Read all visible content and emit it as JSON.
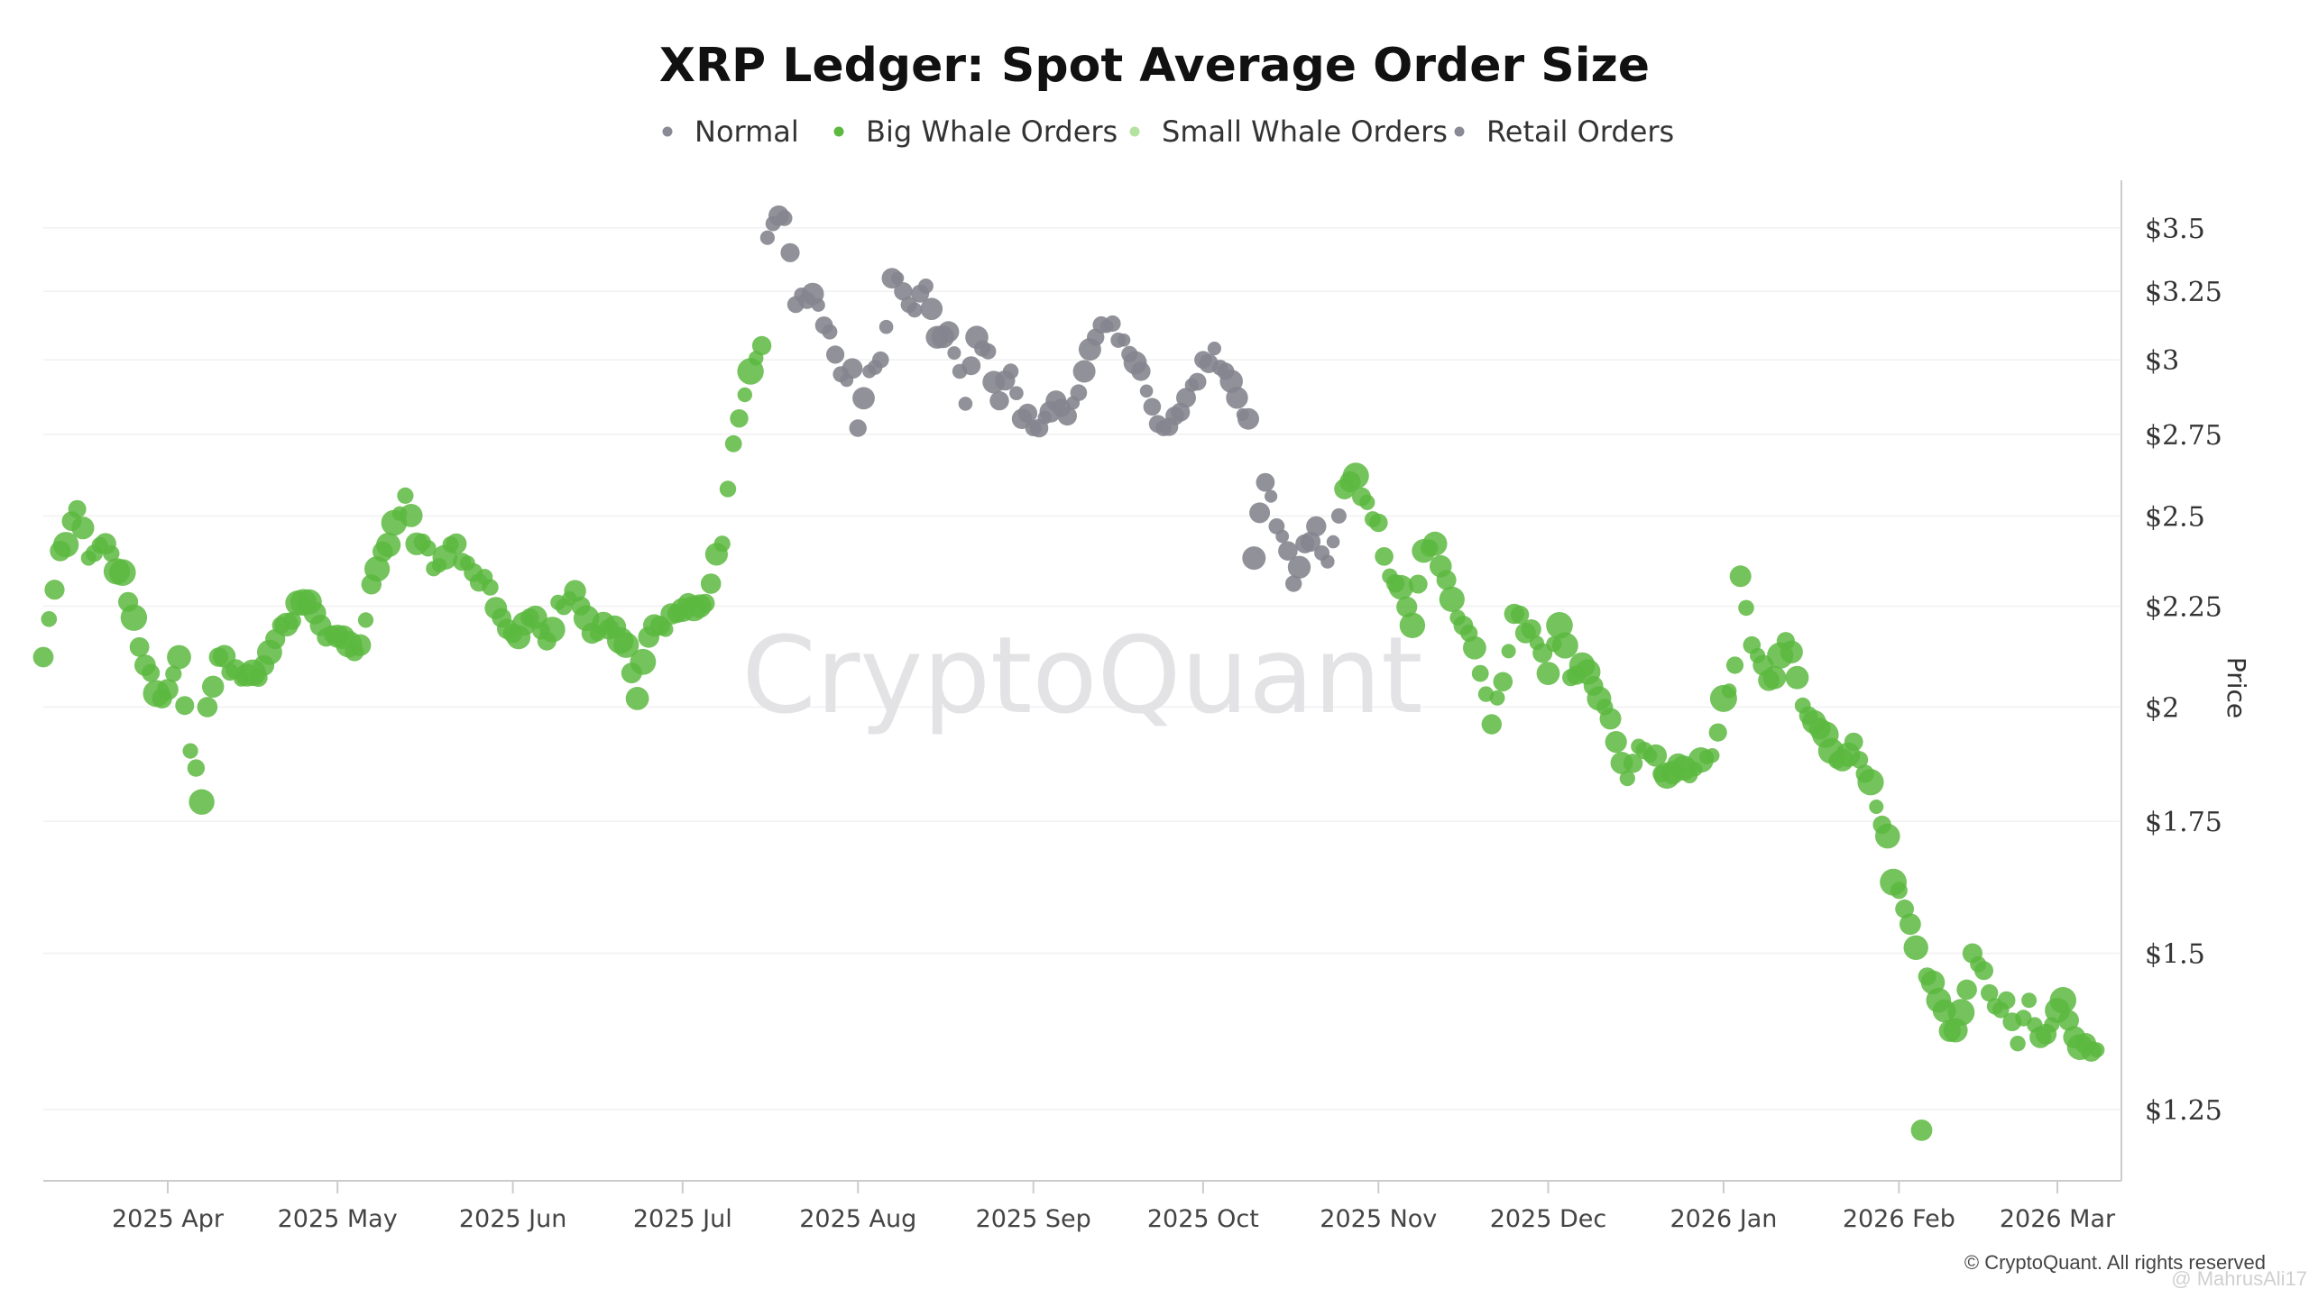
{
  "chart_data": {
    "type": "scatter",
    "title": "XRP Ledger: Spot Average Order Size",
    "ylabel": "Price",
    "xlabel": "",
    "y_scale": "log",
    "ylim": [
      1.15,
      3.7
    ],
    "yticks": [
      {
        "value": 1.25,
        "label": "$1.25"
      },
      {
        "value": 1.5,
        "label": "$1.5"
      },
      {
        "value": 1.75,
        "label": "$1.75"
      },
      {
        "value": 2,
        "label": "$2"
      },
      {
        "value": 2.25,
        "label": "$2.25"
      },
      {
        "value": 2.5,
        "label": "$2.5"
      },
      {
        "value": 2.75,
        "label": "$2.75"
      },
      {
        "value": 3,
        "label": "$3"
      },
      {
        "value": 3.25,
        "label": "$3.25"
      },
      {
        "value": 3.5,
        "label": "$3.5"
      }
    ],
    "x_start": "2025-03-10",
    "x_end": "2026-03-12",
    "xticks": [
      {
        "date": "2025-04-01",
        "label": "2025 Apr"
      },
      {
        "date": "2025-05-01",
        "label": "2025 May"
      },
      {
        "date": "2025-06-01",
        "label": "2025 Jun"
      },
      {
        "date": "2025-07-01",
        "label": "2025 Jul"
      },
      {
        "date": "2025-08-01",
        "label": "2025 Aug"
      },
      {
        "date": "2025-09-01",
        "label": "2025 Sep"
      },
      {
        "date": "2025-10-01",
        "label": "2025 Oct"
      },
      {
        "date": "2025-11-01",
        "label": "2025 Nov"
      },
      {
        "date": "2025-12-01",
        "label": "2025 Dec"
      },
      {
        "date": "2026-01-01",
        "label": "2026 Jan"
      },
      {
        "date": "2026-02-01",
        "label": "2026 Feb"
      },
      {
        "date": "2026-03-01",
        "label": "2026 Mar"
      }
    ],
    "legend_position": "top-center",
    "legend": [
      {
        "key": "normal",
        "label": "Normal",
        "color": "#8a8a96"
      },
      {
        "key": "big",
        "label": "Big Whale Orders",
        "color": "#5cb83f"
      },
      {
        "key": "small",
        "label": "Small Whale Orders",
        "color": "#b5e29e"
      },
      {
        "key": "retail",
        "label": "Retail Orders",
        "color": "#8a8a96"
      }
    ],
    "series_colors": {
      "big": "#5cb83f",
      "retail": "#85858f"
    },
    "anchors": [
      [
        "2025-03-10",
        2.12,
        "big"
      ],
      [
        "2025-03-13",
        2.4,
        "big"
      ],
      [
        "2025-03-16",
        2.52,
        "big"
      ],
      [
        "2025-03-18",
        2.38,
        "big"
      ],
      [
        "2025-03-21",
        2.42,
        "big"
      ],
      [
        "2025-03-24",
        2.34,
        "big"
      ],
      [
        "2025-03-26",
        2.22,
        "big"
      ],
      [
        "2025-03-28",
        2.1,
        "big"
      ],
      [
        "2025-03-31",
        2.02,
        "big"
      ],
      [
        "2025-04-03",
        2.12,
        "big"
      ],
      [
        "2025-04-05",
        1.9,
        "big"
      ],
      [
        "2025-04-07",
        1.79,
        "big"
      ],
      [
        "2025-04-08",
        2.0,
        "big"
      ],
      [
        "2025-04-10",
        2.12,
        "big"
      ],
      [
        "2025-04-13",
        2.09,
        "big"
      ],
      [
        "2025-04-17",
        2.07,
        "big"
      ],
      [
        "2025-04-21",
        2.2,
        "big"
      ],
      [
        "2025-04-25",
        2.26,
        "big"
      ],
      [
        "2025-04-28",
        2.2,
        "big"
      ],
      [
        "2025-05-02",
        2.17,
        "big"
      ],
      [
        "2025-05-05",
        2.15,
        "big"
      ],
      [
        "2025-05-08",
        2.35,
        "big"
      ],
      [
        "2025-05-11",
        2.48,
        "big"
      ],
      [
        "2025-05-13",
        2.56,
        "big"
      ],
      [
        "2025-05-15",
        2.42,
        "big"
      ],
      [
        "2025-05-19",
        2.36,
        "big"
      ],
      [
        "2025-05-22",
        2.42,
        "big"
      ],
      [
        "2025-05-25",
        2.34,
        "big"
      ],
      [
        "2025-05-28",
        2.3,
        "big"
      ],
      [
        "2025-06-01",
        2.18,
        "big"
      ],
      [
        "2025-06-04",
        2.22,
        "big"
      ],
      [
        "2025-06-07",
        2.16,
        "big"
      ],
      [
        "2025-06-09",
        2.26,
        "big"
      ],
      [
        "2025-06-12",
        2.29,
        "big"
      ],
      [
        "2025-06-15",
        2.18,
        "big"
      ],
      [
        "2025-06-18",
        2.19,
        "big"
      ],
      [
        "2025-06-21",
        2.15,
        "big"
      ],
      [
        "2025-06-23",
        2.02,
        "big"
      ],
      [
        "2025-06-25",
        2.17,
        "big"
      ],
      [
        "2025-06-28",
        2.19,
        "big"
      ],
      [
        "2025-07-01",
        2.24,
        "big"
      ],
      [
        "2025-07-04",
        2.25,
        "big"
      ],
      [
        "2025-07-06",
        2.31,
        "big"
      ],
      [
        "2025-07-08",
        2.42,
        "big"
      ],
      [
        "2025-07-10",
        2.72,
        "big"
      ],
      [
        "2025-07-12",
        2.88,
        "big"
      ],
      [
        "2025-07-13",
        2.96,
        "big"
      ],
      [
        "2025-07-15",
        3.05,
        "big"
      ],
      [
        "2025-07-16",
        3.46,
        "retail"
      ],
      [
        "2025-07-18",
        3.55,
        "retail"
      ],
      [
        "2025-07-19",
        3.54,
        "retail"
      ],
      [
        "2025-07-21",
        3.2,
        "retail"
      ],
      [
        "2025-07-24",
        3.24,
        "retail"
      ],
      [
        "2025-07-27",
        3.1,
        "retail"
      ],
      [
        "2025-07-29",
        2.95,
        "retail"
      ],
      [
        "2025-07-31",
        2.97,
        "retail"
      ],
      [
        "2025-08-01",
        2.77,
        "retail"
      ],
      [
        "2025-08-03",
        2.96,
        "retail"
      ],
      [
        "2025-08-05",
        3.0,
        "retail"
      ],
      [
        "2025-08-07",
        3.3,
        "retail"
      ],
      [
        "2025-08-09",
        3.25,
        "retail"
      ],
      [
        "2025-08-11",
        3.18,
        "retail"
      ],
      [
        "2025-08-13",
        3.27,
        "retail"
      ],
      [
        "2025-08-15",
        3.08,
        "retail"
      ],
      [
        "2025-08-17",
        3.1,
        "retail"
      ],
      [
        "2025-08-19",
        2.96,
        "retail"
      ],
      [
        "2025-08-20",
        2.85,
        "retail"
      ],
      [
        "2025-08-22",
        3.08,
        "retail"
      ],
      [
        "2025-08-24",
        3.03,
        "retail"
      ],
      [
        "2025-08-26",
        2.86,
        "retail"
      ],
      [
        "2025-08-28",
        2.96,
        "retail"
      ],
      [
        "2025-08-30",
        2.8,
        "retail"
      ],
      [
        "2025-09-02",
        2.77,
        "retail"
      ],
      [
        "2025-09-05",
        2.86,
        "retail"
      ],
      [
        "2025-09-07",
        2.81,
        "retail"
      ],
      [
        "2025-09-10",
        2.96,
        "retail"
      ],
      [
        "2025-09-12",
        3.08,
        "retail"
      ],
      [
        "2025-09-14",
        3.12,
        "retail"
      ],
      [
        "2025-09-17",
        3.07,
        "retail"
      ],
      [
        "2025-09-19",
        2.99,
        "retail"
      ],
      [
        "2025-09-22",
        2.84,
        "retail"
      ],
      [
        "2025-09-24",
        2.77,
        "retail"
      ],
      [
        "2025-09-26",
        2.81,
        "retail"
      ],
      [
        "2025-09-28",
        2.87,
        "retail"
      ],
      [
        "2025-10-01",
        3.0,
        "retail"
      ],
      [
        "2025-10-03",
        3.04,
        "retail"
      ],
      [
        "2025-10-05",
        2.96,
        "retail"
      ],
      [
        "2025-10-07",
        2.87,
        "retail"
      ],
      [
        "2025-10-09",
        2.8,
        "retail"
      ],
      [
        "2025-10-10",
        2.38,
        "retail"
      ],
      [
        "2025-10-12",
        2.6,
        "retail"
      ],
      [
        "2025-10-14",
        2.47,
        "retail"
      ],
      [
        "2025-10-16",
        2.4,
        "retail"
      ],
      [
        "2025-10-17",
        2.31,
        "retail"
      ],
      [
        "2025-10-19",
        2.42,
        "retail"
      ],
      [
        "2025-10-21",
        2.47,
        "retail"
      ],
      [
        "2025-10-23",
        2.37,
        "retail"
      ],
      [
        "2025-10-25",
        2.5,
        "retail"
      ],
      [
        "2025-10-26",
        2.58,
        "big"
      ],
      [
        "2025-10-28",
        2.62,
        "big"
      ],
      [
        "2025-10-30",
        2.54,
        "big"
      ],
      [
        "2025-11-01",
        2.48,
        "big"
      ],
      [
        "2025-11-03",
        2.33,
        "big"
      ],
      [
        "2025-11-05",
        2.3,
        "big"
      ],
      [
        "2025-11-07",
        2.2,
        "big"
      ],
      [
        "2025-11-09",
        2.4,
        "big"
      ],
      [
        "2025-11-11",
        2.42,
        "big"
      ],
      [
        "2025-11-13",
        2.32,
        "big"
      ],
      [
        "2025-11-15",
        2.22,
        "big"
      ],
      [
        "2025-11-17",
        2.18,
        "big"
      ],
      [
        "2025-11-19",
        2.08,
        "big"
      ],
      [
        "2025-11-21",
        1.96,
        "big"
      ],
      [
        "2025-11-23",
        2.06,
        "big"
      ],
      [
        "2025-11-25",
        2.23,
        "big"
      ],
      [
        "2025-11-28",
        2.19,
        "big"
      ],
      [
        "2025-12-01",
        2.08,
        "big"
      ],
      [
        "2025-12-03",
        2.2,
        "big"
      ],
      [
        "2025-12-05",
        2.07,
        "big"
      ],
      [
        "2025-12-07",
        2.1,
        "big"
      ],
      [
        "2025-12-09",
        2.05,
        "big"
      ],
      [
        "2025-12-11",
        2.0,
        "big"
      ],
      [
        "2025-12-13",
        1.92,
        "big"
      ],
      [
        "2025-12-15",
        1.84,
        "big"
      ],
      [
        "2025-12-17",
        1.91,
        "big"
      ],
      [
        "2025-12-19",
        1.89,
        "big"
      ],
      [
        "2025-12-21",
        1.85,
        "big"
      ],
      [
        "2025-12-24",
        1.87,
        "big"
      ],
      [
        "2025-12-27",
        1.86,
        "big"
      ],
      [
        "2025-12-30",
        1.89,
        "big"
      ],
      [
        "2026-01-01",
        2.02,
        "big"
      ],
      [
        "2026-01-03",
        2.1,
        "big"
      ],
      [
        "2026-01-04",
        2.33,
        "big"
      ],
      [
        "2026-01-06",
        2.15,
        "big"
      ],
      [
        "2026-01-08",
        2.1,
        "big"
      ],
      [
        "2026-01-10",
        2.07,
        "big"
      ],
      [
        "2026-01-12",
        2.16,
        "big"
      ],
      [
        "2026-01-14",
        2.07,
        "big"
      ],
      [
        "2026-01-16",
        1.98,
        "big"
      ],
      [
        "2026-01-18",
        1.95,
        "big"
      ],
      [
        "2026-01-20",
        1.9,
        "big"
      ],
      [
        "2026-01-22",
        1.88,
        "big"
      ],
      [
        "2026-01-24",
        1.92,
        "big"
      ],
      [
        "2026-01-26",
        1.85,
        "big"
      ],
      [
        "2026-01-28",
        1.78,
        "big"
      ],
      [
        "2026-01-30",
        1.72,
        "big"
      ],
      [
        "2026-01-31",
        1.63,
        "big"
      ],
      [
        "2026-02-02",
        1.58,
        "big"
      ],
      [
        "2026-02-04",
        1.51,
        "big"
      ],
      [
        "2026-02-05",
        1.22,
        "big"
      ],
      [
        "2026-02-06",
        1.46,
        "big"
      ],
      [
        "2026-02-08",
        1.42,
        "big"
      ],
      [
        "2026-02-10",
        1.37,
        "big"
      ],
      [
        "2026-02-12",
        1.4,
        "big"
      ],
      [
        "2026-02-14",
        1.5,
        "big"
      ],
      [
        "2026-02-16",
        1.47,
        "big"
      ],
      [
        "2026-02-18",
        1.41,
        "big"
      ],
      [
        "2026-02-20",
        1.42,
        "big"
      ],
      [
        "2026-02-22",
        1.35,
        "big"
      ],
      [
        "2026-02-24",
        1.42,
        "big"
      ],
      [
        "2026-02-26",
        1.36,
        "big"
      ],
      [
        "2026-02-28",
        1.38,
        "big"
      ],
      [
        "2026-03-02",
        1.42,
        "big"
      ],
      [
        "2026-03-04",
        1.36,
        "big"
      ],
      [
        "2026-03-06",
        1.35,
        "big"
      ],
      [
        "2026-03-08",
        1.34,
        "big"
      ]
    ]
  },
  "watermark": "CryptoQuant",
  "credit": "© CryptoQuant. All rights reserved",
  "handle": "@ MahrusAli17"
}
